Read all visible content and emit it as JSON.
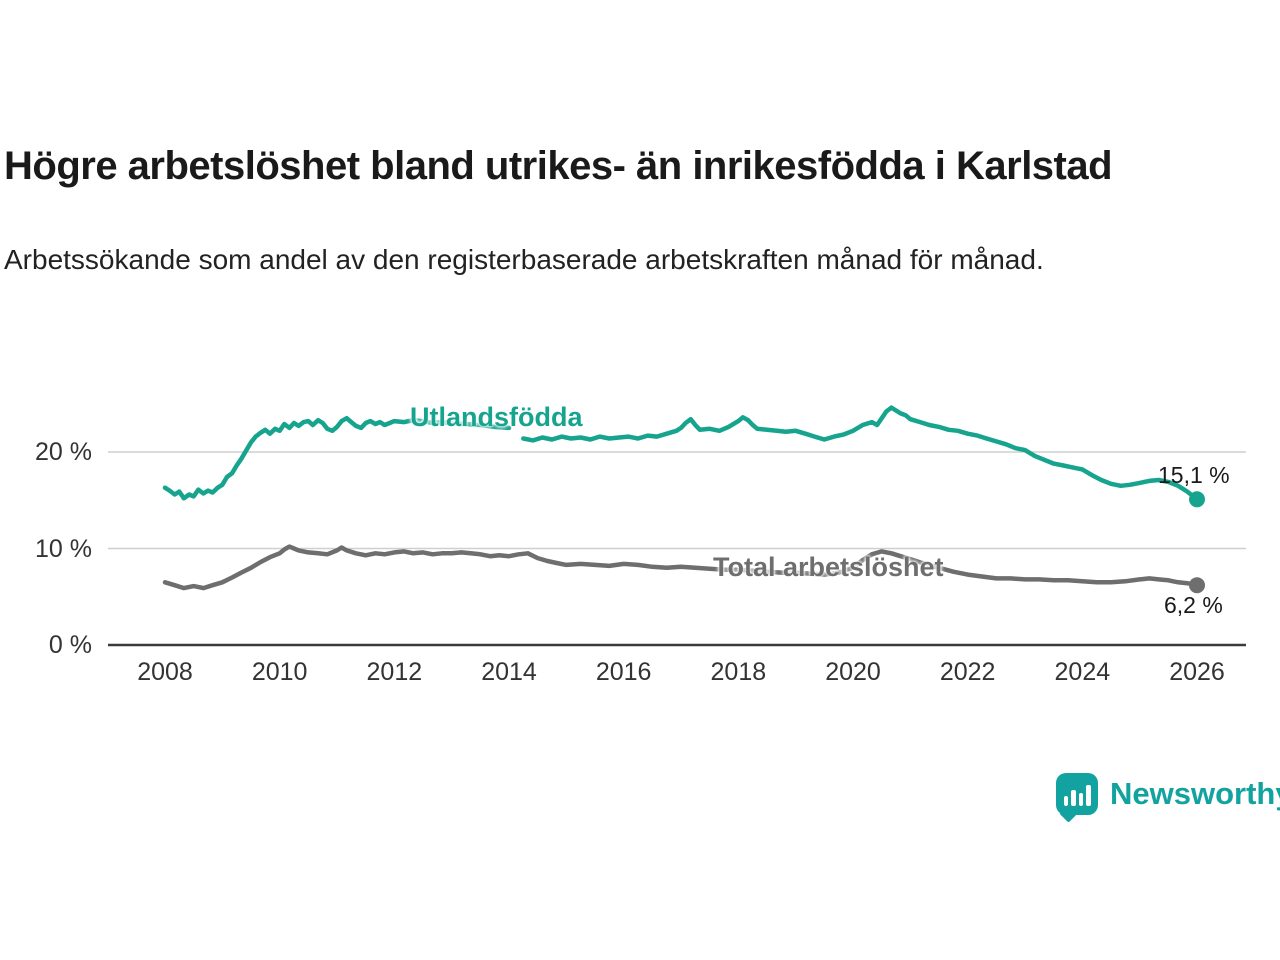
{
  "branding": {
    "name": "Newsworthy",
    "color": "#12a3a0"
  },
  "chart_data": {
    "type": "line",
    "title": "Högre arbetslöshet bland utrikes- än inrikesfödda i Karlstad",
    "subtitle": "Arbetssökande som andel av den registerbaserade arbetskraften månad för månad.",
    "unit": "%",
    "x_range": [
      2007.6,
      2026.8
    ],
    "y_range": [
      0,
      26
    ],
    "grid": "horizontal",
    "legend": "inline-labels",
    "yticks": [
      {
        "value": 0,
        "label": "0 %"
      },
      {
        "value": 10,
        "label": "10 %"
      },
      {
        "value": 20,
        "label": "20 %"
      }
    ],
    "xticks": [
      {
        "value": 2008,
        "label": "2008"
      },
      {
        "value": 2010,
        "label": "2010"
      },
      {
        "value": 2012,
        "label": "2012"
      },
      {
        "value": 2014,
        "label": "2014"
      },
      {
        "value": 2016,
        "label": "2016"
      },
      {
        "value": 2018,
        "label": "2018"
      },
      {
        "value": 2020,
        "label": "2020"
      },
      {
        "value": 2022,
        "label": "2022"
      },
      {
        "value": 2024,
        "label": "2024"
      },
      {
        "value": 2026,
        "label": "2026"
      }
    ],
    "series": [
      {
        "name": "Utlandsfödda",
        "color": "#17a48e",
        "end_label": "15,1 %",
        "end_value": 15.1,
        "segments": [
          [
            [
              2008.0,
              16.3
            ],
            [
              2008.08,
              16.0
            ],
            [
              2008.17,
              15.6
            ],
            [
              2008.25,
              15.9
            ],
            [
              2008.33,
              15.2
            ],
            [
              2008.42,
              15.6
            ],
            [
              2008.5,
              15.4
            ],
            [
              2008.58,
              16.1
            ],
            [
              2008.67,
              15.7
            ],
            [
              2008.75,
              16.0
            ],
            [
              2008.83,
              15.8
            ],
            [
              2008.92,
              16.3
            ],
            [
              2009.0,
              16.6
            ],
            [
              2009.08,
              17.4
            ],
            [
              2009.17,
              17.8
            ],
            [
              2009.25,
              18.6
            ],
            [
              2009.33,
              19.3
            ],
            [
              2009.42,
              20.2
            ],
            [
              2009.5,
              21.0
            ],
            [
              2009.58,
              21.6
            ],
            [
              2009.67,
              22.0
            ],
            [
              2009.75,
              22.3
            ],
            [
              2009.83,
              21.9
            ],
            [
              2009.92,
              22.4
            ],
            [
              2010.0,
              22.2
            ],
            [
              2010.08,
              22.9
            ],
            [
              2010.17,
              22.5
            ],
            [
              2010.25,
              23.0
            ],
            [
              2010.33,
              22.7
            ],
            [
              2010.42,
              23.1
            ],
            [
              2010.5,
              23.2
            ],
            [
              2010.58,
              22.8
            ],
            [
              2010.67,
              23.3
            ],
            [
              2010.75,
              23.0
            ],
            [
              2010.83,
              22.4
            ],
            [
              2010.92,
              22.2
            ],
            [
              2011.0,
              22.6
            ],
            [
              2011.08,
              23.2
            ],
            [
              2011.17,
              23.5
            ],
            [
              2011.25,
              23.1
            ],
            [
              2011.33,
              22.7
            ],
            [
              2011.42,
              22.5
            ],
            [
              2011.5,
              23.0
            ],
            [
              2011.58,
              23.2
            ],
            [
              2011.67,
              22.9
            ],
            [
              2011.75,
              23.1
            ],
            [
              2011.83,
              22.8
            ],
            [
              2011.92,
              23.0
            ],
            [
              2012.0,
              23.2
            ],
            [
              2012.17,
              23.1
            ],
            [
              2012.33,
              23.3
            ],
            [
              2012.5,
              23.2
            ],
            [
              2012.67,
              23.0
            ],
            [
              2012.83,
              23.1
            ],
            [
              2013.0,
              23.0
            ],
            [
              2013.25,
              22.9
            ],
            [
              2013.5,
              22.8
            ],
            [
              2013.75,
              22.6
            ],
            [
              2014.0,
              22.5
            ]
          ],
          [
            [
              2014.25,
              21.4
            ],
            [
              2014.42,
              21.2
            ],
            [
              2014.58,
              21.5
            ],
            [
              2014.75,
              21.3
            ],
            [
              2014.92,
              21.6
            ],
            [
              2015.08,
              21.4
            ],
            [
              2015.25,
              21.5
            ],
            [
              2015.42,
              21.3
            ],
            [
              2015.58,
              21.6
            ],
            [
              2015.75,
              21.4
            ],
            [
              2015.92,
              21.5
            ],
            [
              2016.08,
              21.6
            ],
            [
              2016.25,
              21.4
            ],
            [
              2016.42,
              21.7
            ],
            [
              2016.58,
              21.6
            ],
            [
              2016.75,
              21.9
            ],
            [
              2016.92,
              22.2
            ],
            [
              2017.0,
              22.5
            ],
            [
              2017.08,
              23.0
            ],
            [
              2017.17,
              23.4
            ],
            [
              2017.25,
              22.8
            ],
            [
              2017.33,
              22.3
            ],
            [
              2017.5,
              22.4
            ],
            [
              2017.67,
              22.2
            ],
            [
              2017.83,
              22.6
            ],
            [
              2018.0,
              23.2
            ],
            [
              2018.08,
              23.6
            ],
            [
              2018.17,
              23.3
            ],
            [
              2018.25,
              22.8
            ],
            [
              2018.33,
              22.4
            ],
            [
              2018.5,
              22.3
            ],
            [
              2018.67,
              22.2
            ],
            [
              2018.83,
              22.1
            ],
            [
              2019.0,
              22.2
            ],
            [
              2019.17,
              21.9
            ],
            [
              2019.33,
              21.6
            ],
            [
              2019.5,
              21.3
            ],
            [
              2019.67,
              21.6
            ],
            [
              2019.83,
              21.8
            ],
            [
              2020.0,
              22.2
            ],
            [
              2020.17,
              22.8
            ],
            [
              2020.33,
              23.1
            ],
            [
              2020.42,
              22.8
            ],
            [
              2020.5,
              23.5
            ],
            [
              2020.58,
              24.2
            ],
            [
              2020.67,
              24.6
            ],
            [
              2020.75,
              24.3
            ],
            [
              2020.83,
              24.0
            ],
            [
              2020.92,
              23.8
            ],
            [
              2021.0,
              23.4
            ],
            [
              2021.17,
              23.1
            ],
            [
              2021.33,
              22.8
            ],
            [
              2021.5,
              22.6
            ],
            [
              2021.67,
              22.3
            ],
            [
              2021.83,
              22.2
            ],
            [
              2022.0,
              21.9
            ],
            [
              2022.17,
              21.7
            ],
            [
              2022.33,
              21.4
            ],
            [
              2022.5,
              21.1
            ],
            [
              2022.67,
              20.8
            ],
            [
              2022.83,
              20.4
            ],
            [
              2023.0,
              20.2
            ],
            [
              2023.17,
              19.6
            ],
            [
              2023.33,
              19.2
            ],
            [
              2023.5,
              18.8
            ],
            [
              2023.67,
              18.6
            ],
            [
              2023.83,
              18.4
            ],
            [
              2024.0,
              18.2
            ],
            [
              2024.17,
              17.6
            ],
            [
              2024.33,
              17.1
            ],
            [
              2024.5,
              16.7
            ],
            [
              2024.67,
              16.5
            ],
            [
              2024.83,
              16.6
            ],
            [
              2025.0,
              16.8
            ],
            [
              2025.17,
              17.0
            ],
            [
              2025.33,
              17.1
            ],
            [
              2025.5,
              16.9
            ],
            [
              2025.67,
              16.5
            ],
            [
              2025.83,
              15.9
            ],
            [
              2026.0,
              15.1
            ]
          ]
        ]
      },
      {
        "name": "Total arbetslöshet",
        "color": "#6e6e6e",
        "end_label": "6,2 %",
        "end_value": 6.2,
        "segments": [
          [
            [
              2008.0,
              6.5
            ],
            [
              2008.17,
              6.2
            ],
            [
              2008.33,
              5.9
            ],
            [
              2008.5,
              6.1
            ],
            [
              2008.67,
              5.9
            ],
            [
              2008.83,
              6.2
            ],
            [
              2009.0,
              6.5
            ],
            [
              2009.17,
              7.0
            ],
            [
              2009.33,
              7.5
            ],
            [
              2009.5,
              8.0
            ],
            [
              2009.67,
              8.6
            ],
            [
              2009.83,
              9.1
            ],
            [
              2010.0,
              9.5
            ],
            [
              2010.08,
              9.9
            ],
            [
              2010.17,
              10.2
            ],
            [
              2010.25,
              10.0
            ],
            [
              2010.33,
              9.8
            ],
            [
              2010.5,
              9.6
            ],
            [
              2010.67,
              9.5
            ],
            [
              2010.83,
              9.4
            ],
            [
              2011.0,
              9.8
            ],
            [
              2011.08,
              10.1
            ],
            [
              2011.17,
              9.8
            ],
            [
              2011.33,
              9.5
            ],
            [
              2011.5,
              9.3
            ],
            [
              2011.67,
              9.5
            ],
            [
              2011.83,
              9.4
            ],
            [
              2012.0,
              9.6
            ],
            [
              2012.17,
              9.7
            ],
            [
              2012.33,
              9.5
            ],
            [
              2012.5,
              9.6
            ],
            [
              2012.67,
              9.4
            ],
            [
              2012.83,
              9.5
            ],
            [
              2013.0,
              9.5
            ],
            [
              2013.17,
              9.6
            ],
            [
              2013.33,
              9.5
            ],
            [
              2013.5,
              9.4
            ],
            [
              2013.67,
              9.2
            ],
            [
              2013.83,
              9.3
            ],
            [
              2014.0,
              9.2
            ],
            [
              2014.17,
              9.4
            ],
            [
              2014.33,
              9.5
            ],
            [
              2014.5,
              9.0
            ],
            [
              2014.67,
              8.7
            ],
            [
              2014.83,
              8.5
            ],
            [
              2015.0,
              8.3
            ],
            [
              2015.25,
              8.4
            ],
            [
              2015.5,
              8.3
            ],
            [
              2015.75,
              8.2
            ],
            [
              2016.0,
              8.4
            ],
            [
              2016.25,
              8.3
            ],
            [
              2016.5,
              8.1
            ],
            [
              2016.75,
              8.0
            ],
            [
              2017.0,
              8.1
            ],
            [
              2017.25,
              8.0
            ],
            [
              2017.5,
              7.9
            ],
            [
              2017.75,
              7.8
            ],
            [
              2018.0,
              7.8
            ],
            [
              2018.25,
              7.7
            ],
            [
              2018.5,
              7.6
            ],
            [
              2018.75,
              7.5
            ],
            [
              2019.0,
              7.5
            ],
            [
              2019.25,
              7.4
            ],
            [
              2019.5,
              7.3
            ],
            [
              2019.75,
              7.5
            ],
            [
              2020.0,
              8.0
            ],
            [
              2020.17,
              8.8
            ],
            [
              2020.33,
              9.4
            ],
            [
              2020.5,
              9.7
            ],
            [
              2020.67,
              9.5
            ],
            [
              2020.83,
              9.2
            ],
            [
              2021.0,
              8.9
            ],
            [
              2021.25,
              8.4
            ],
            [
              2021.5,
              8.0
            ],
            [
              2021.75,
              7.6
            ],
            [
              2022.0,
              7.3
            ],
            [
              2022.25,
              7.1
            ],
            [
              2022.5,
              6.9
            ],
            [
              2022.75,
              6.9
            ],
            [
              2023.0,
              6.8
            ],
            [
              2023.25,
              6.8
            ],
            [
              2023.5,
              6.7
            ],
            [
              2023.75,
              6.7
            ],
            [
              2024.0,
              6.6
            ],
            [
              2024.25,
              6.5
            ],
            [
              2024.5,
              6.5
            ],
            [
              2024.75,
              6.6
            ],
            [
              2025.0,
              6.8
            ],
            [
              2025.17,
              6.9
            ],
            [
              2025.33,
              6.8
            ],
            [
              2025.5,
              6.7
            ],
            [
              2025.67,
              6.5
            ],
            [
              2025.83,
              6.4
            ],
            [
              2026.0,
              6.2
            ]
          ]
        ]
      }
    ]
  }
}
